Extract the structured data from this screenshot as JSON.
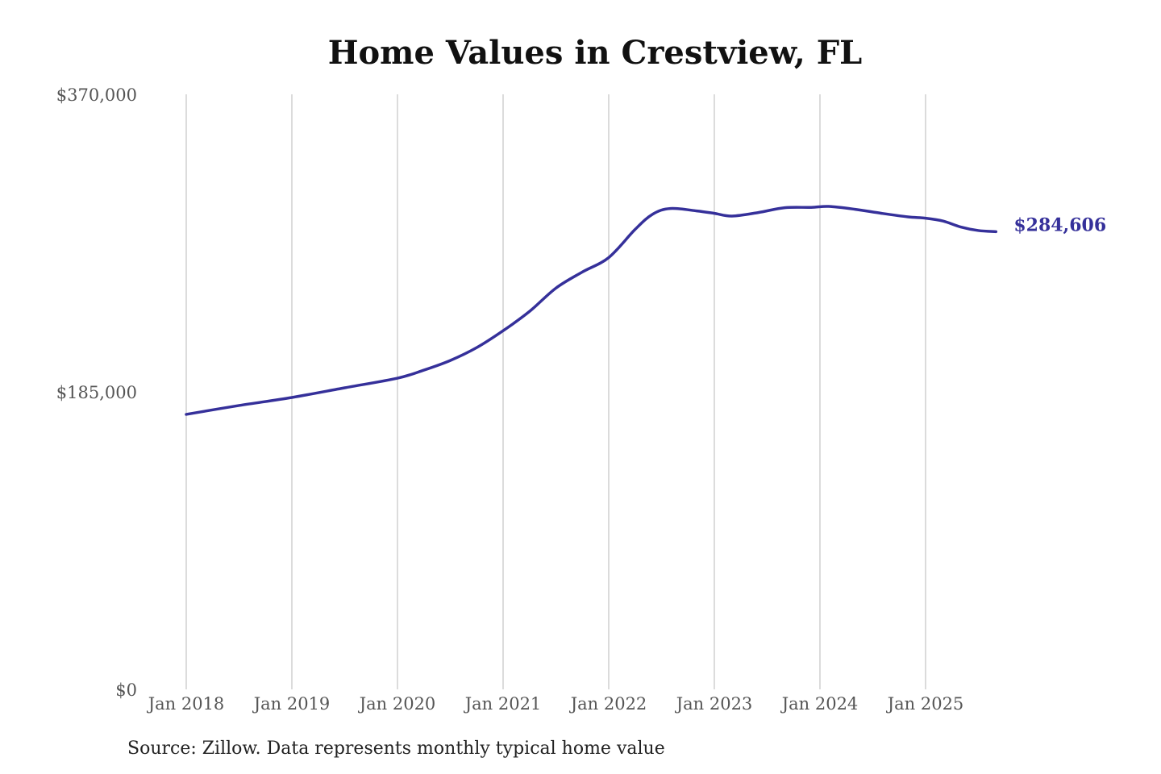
{
  "chart_data": {
    "type": "line",
    "title": "Home Values in Crestview, FL",
    "xlabel": "",
    "ylabel": "",
    "ylim": [
      0,
      370000
    ],
    "y_ticks": [
      "$0",
      "$185,000",
      "$370,000"
    ],
    "y_tick_values": [
      0,
      185000,
      370000
    ],
    "x_ticks": [
      "Jan 2018",
      "Jan 2019",
      "Jan 2020",
      "Jan 2021",
      "Jan 2022",
      "Jan 2023",
      "Jan 2024",
      "Jan 2025"
    ],
    "grid": "vertical",
    "series_color": "#35309a",
    "end_label": "$284,606",
    "source": "Source: Zillow. Data represents monthly typical home value",
    "x": [
      "2018-01",
      "2018-07",
      "2019-01",
      "2019-07",
      "2020-01",
      "2020-04",
      "2020-07",
      "2020-10",
      "2021-01",
      "2021-04",
      "2021-07",
      "2021-10",
      "2022-01",
      "2022-04",
      "2022-06",
      "2022-08",
      "2022-11",
      "2023-01",
      "2023-03",
      "2023-06",
      "2023-09",
      "2023-12",
      "2024-02",
      "2024-05",
      "2024-08",
      "2024-11",
      "2025-01",
      "2025-03",
      "2025-05",
      "2025-07",
      "2025-09"
    ],
    "values": [
      171000,
      176500,
      181500,
      187500,
      193500,
      198500,
      204500,
      212500,
      223000,
      235000,
      249500,
      259500,
      268500,
      286000,
      295500,
      299000,
      297500,
      296000,
      294300,
      296500,
      299500,
      299700,
      300300,
      298500,
      296000,
      293800,
      293000,
      291200,
      287500,
      285300,
      284606
    ]
  }
}
